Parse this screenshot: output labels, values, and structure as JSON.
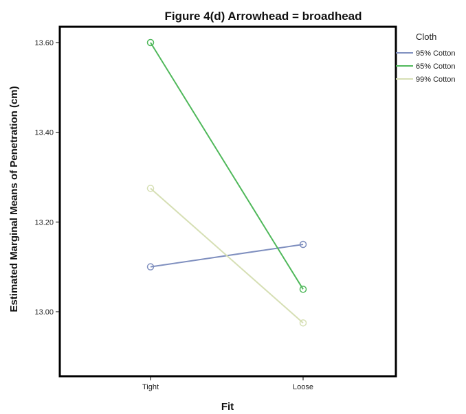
{
  "chart_data": {
    "type": "line",
    "title": "Figure 4(d) Arrowhead = broadhead",
    "xlabel": "Fit",
    "ylabel": "Estimated Marginal Means of Penetration (cm)",
    "categories": [
      "Tight",
      "Loose"
    ],
    "ylim": [
      12.85,
      13.62
    ],
    "yticks": [
      "13.00",
      "13.20",
      "13.40",
      "13.60"
    ],
    "grid": false,
    "legend_title": "Cloth",
    "legend_position": "right",
    "series": [
      {
        "name": "95% Cotton",
        "values": [
          13.1,
          13.15
        ],
        "color": "#7f8fbf"
      },
      {
        "name": "65% Cotton",
        "values": [
          13.6,
          13.05
        ],
        "color": "#4fb85a"
      },
      {
        "name": "99% Cotton",
        "values": [
          13.275,
          12.975
        ],
        "color": "#d6dfb4"
      }
    ]
  }
}
